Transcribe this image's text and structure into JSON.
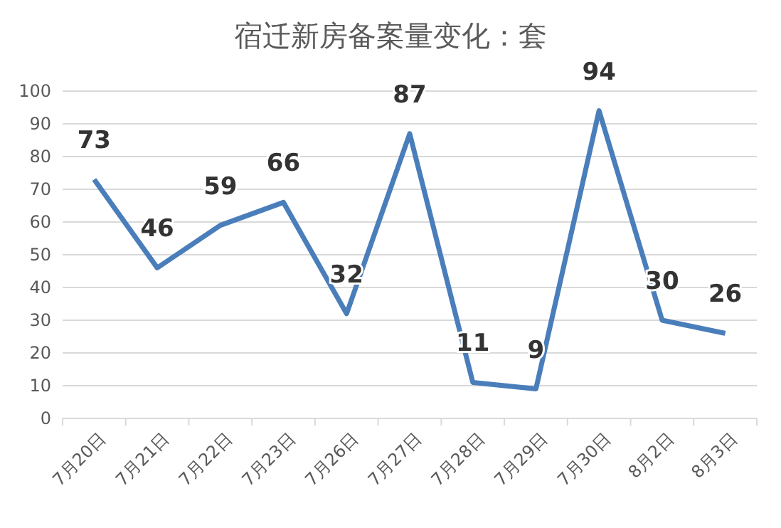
{
  "chart_data": {
    "type": "line",
    "title": "宿迁新房备案量变化：套",
    "categories": [
      "7月20日",
      "7月21日",
      "7月22日",
      "7月23日",
      "7月26日",
      "7月27日",
      "7月28日",
      "7月29日",
      "7月30日",
      "8月2日",
      "8月3日"
    ],
    "series": [
      {
        "color": "#4a7ebb",
        "values": [
          73,
          46,
          59,
          66,
          32,
          87,
          11,
          9,
          94,
          30,
          26
        ]
      }
    ],
    "ylim": [
      0,
      100
    ],
    "yticks": [
      0,
      10,
      20,
      30,
      40,
      50,
      60,
      70,
      80,
      90,
      100
    ],
    "grid": "y",
    "data_labels": true,
    "marker": "none",
    "line_style": "solid"
  }
}
